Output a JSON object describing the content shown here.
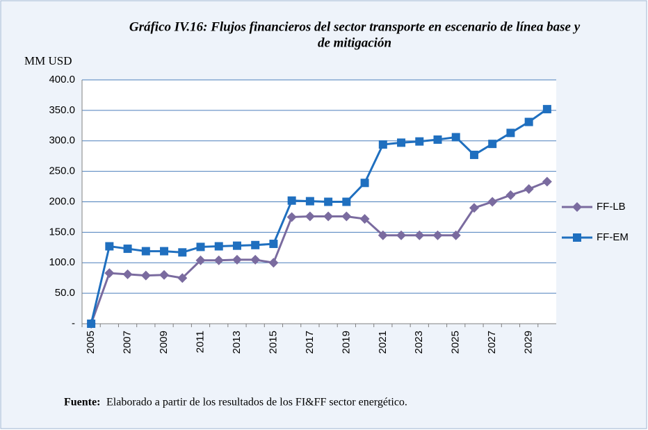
{
  "chart_data": {
    "type": "line",
    "title": [
      "Gráfico IV.16: Flujos financieros del sector transporte  en escenario  de línea base y",
      "de mitigación"
    ],
    "y_label": "MM USD",
    "footer_label": "Fuente:",
    "footer_text": "Elaborado a partir de los resultados de los FI&FF sector energético.",
    "categories": [
      "2005",
      null,
      "2007",
      null,
      "2009",
      null,
      "2011",
      null,
      "2013",
      null,
      "2015",
      null,
      "2017",
      null,
      "2019",
      null,
      "2021",
      null,
      "2023",
      null,
      "2025",
      null,
      "2027",
      null,
      "2029",
      null
    ],
    "series": [
      {
        "name": "FF-LB",
        "color": "#7a6b9f",
        "marker": "diamond",
        "values": [
          0,
          83,
          81,
          79,
          80,
          75,
          104,
          104,
          105,
          105,
          100,
          175,
          176,
          176,
          176,
          172,
          145,
          145,
          145,
          145,
          145,
          190,
          200,
          211,
          221,
          233
        ]
      },
      {
        "name": "FF-EM",
        "color": "#1f6fbf",
        "marker": "square",
        "values": [
          0,
          127,
          123,
          119,
          119,
          117,
          126,
          127,
          128,
          129,
          131,
          202,
          201,
          200,
          200,
          231,
          294,
          297,
          299,
          302,
          306,
          277,
          295,
          313,
          331,
          352
        ]
      }
    ],
    "ylim": [
      0,
      400
    ],
    "yticks": [
      {
        "value": 0,
        "label": "-"
      },
      {
        "value": 50,
        "label": "50.0"
      },
      {
        "value": 100,
        "label": "100.0"
      },
      {
        "value": 150,
        "label": "150.0"
      },
      {
        "value": 200,
        "label": "200.0"
      },
      {
        "value": 250,
        "label": "250.0"
      },
      {
        "value": 300,
        "label": "300.0"
      },
      {
        "value": 350,
        "label": "350.0"
      },
      {
        "value": 400,
        "label": "400.0"
      }
    ],
    "grid": true,
    "legend": "right"
  }
}
